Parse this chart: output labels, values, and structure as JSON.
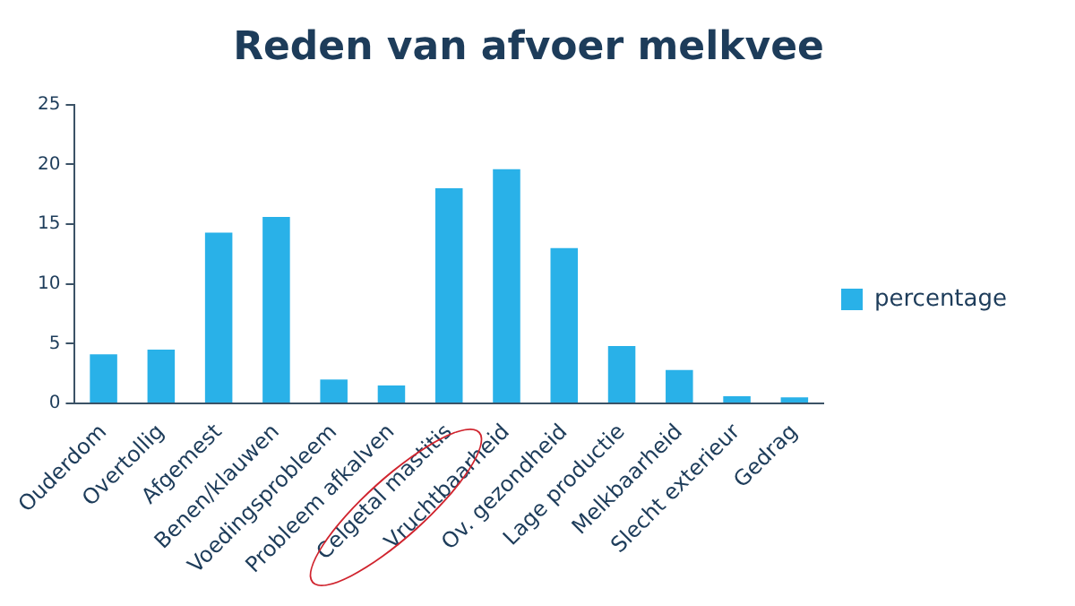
{
  "chart_data": {
    "type": "bar",
    "title": "Reden van afvoer melkvee",
    "categories": [
      "Ouderdom",
      "Overtollig",
      "Afgemest",
      "Benen/klauwen",
      "Voedingsprobleem",
      "Probleem afkalven",
      "Celgetal mastitis",
      "Vruchtbaarheid",
      "Ov. gezondheid",
      "Lage productie",
      "Melkbaarheid",
      "Slecht exterieur",
      "Gedrag"
    ],
    "series": [
      {
        "name": "percentage",
        "color": "#29b1e8",
        "values": [
          4.1,
          4.5,
          14.3,
          15.6,
          2.0,
          1.5,
          18.0,
          19.6,
          13.0,
          4.8,
          2.8,
          0.6,
          0.5
        ]
      }
    ],
    "ylim": [
      0,
      25
    ],
    "yticks": [
      0,
      5,
      10,
      15,
      20,
      25
    ],
    "grid": false,
    "legend": "right"
  }
}
